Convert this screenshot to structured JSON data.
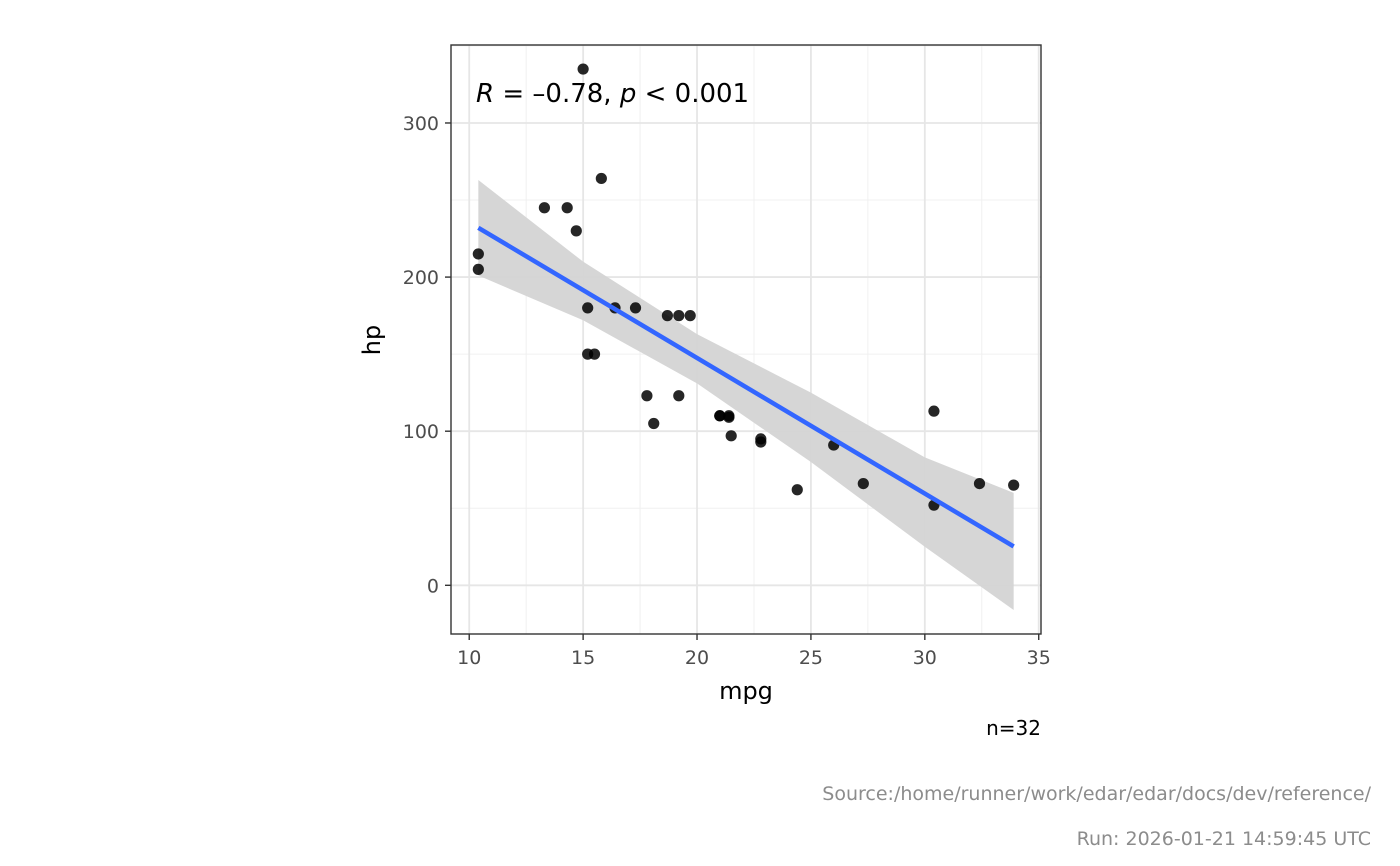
{
  "chart_data": {
    "type": "scatter",
    "xlabel": "mpg",
    "ylabel": "hp",
    "xlim": [
      9.2,
      35.1
    ],
    "ylim": [
      -31.6,
      350.6
    ],
    "xticks": [
      10,
      15,
      20,
      25,
      30,
      35
    ],
    "yticks": [
      0,
      100,
      200,
      300
    ],
    "grid": true,
    "annotation": {
      "r_symbol": "R",
      "equals": " = ",
      "r_value": "–0.78",
      "separator": ", ",
      "p_symbol": "p",
      "p_relation": " < 0.001"
    },
    "points": [
      {
        "x": 21.0,
        "y": 110
      },
      {
        "x": 21.0,
        "y": 110
      },
      {
        "x": 22.8,
        "y": 93
      },
      {
        "x": 21.4,
        "y": 110
      },
      {
        "x": 18.7,
        "y": 175
      },
      {
        "x": 18.1,
        "y": 105
      },
      {
        "x": 14.3,
        "y": 245
      },
      {
        "x": 24.4,
        "y": 62
      },
      {
        "x": 22.8,
        "y": 95
      },
      {
        "x": 19.2,
        "y": 123
      },
      {
        "x": 17.8,
        "y": 123
      },
      {
        "x": 16.4,
        "y": 180
      },
      {
        "x": 17.3,
        "y": 180
      },
      {
        "x": 15.2,
        "y": 180
      },
      {
        "x": 10.4,
        "y": 205
      },
      {
        "x": 10.4,
        "y": 215
      },
      {
        "x": 14.7,
        "y": 230
      },
      {
        "x": 32.4,
        "y": 66
      },
      {
        "x": 30.4,
        "y": 52
      },
      {
        "x": 33.9,
        "y": 65
      },
      {
        "x": 21.5,
        "y": 97
      },
      {
        "x": 15.5,
        "y": 150
      },
      {
        "x": 15.2,
        "y": 150
      },
      {
        "x": 13.3,
        "y": 245
      },
      {
        "x": 19.2,
        "y": 175
      },
      {
        "x": 27.3,
        "y": 66
      },
      {
        "x": 26.0,
        "y": 91
      },
      {
        "x": 30.4,
        "y": 113
      },
      {
        "x": 15.8,
        "y": 264
      },
      {
        "x": 19.7,
        "y": 175
      },
      {
        "x": 15.0,
        "y": 335
      },
      {
        "x": 21.4,
        "y": 109
      }
    ],
    "fit_line": {
      "x": [
        10.4,
        33.9
      ],
      "y": [
        232.0,
        25.2
      ],
      "color": "#3366ff"
    },
    "confidence_band": {
      "x": [
        10.4,
        15,
        20,
        25,
        30,
        33.9
      ],
      "upper": [
        263,
        210,
        163,
        125,
        83,
        60
      ],
      "lower": [
        201,
        172,
        131,
        80,
        25,
        -16
      ],
      "color": "#d4d4d4"
    },
    "point_color": "#000000",
    "caption": "n=32"
  },
  "footer": {
    "source": "Source:/home/runner/work/edar/edar/docs/dev/reference/",
    "run": "Run: 2026-01-21 14:59:45 UTC"
  }
}
